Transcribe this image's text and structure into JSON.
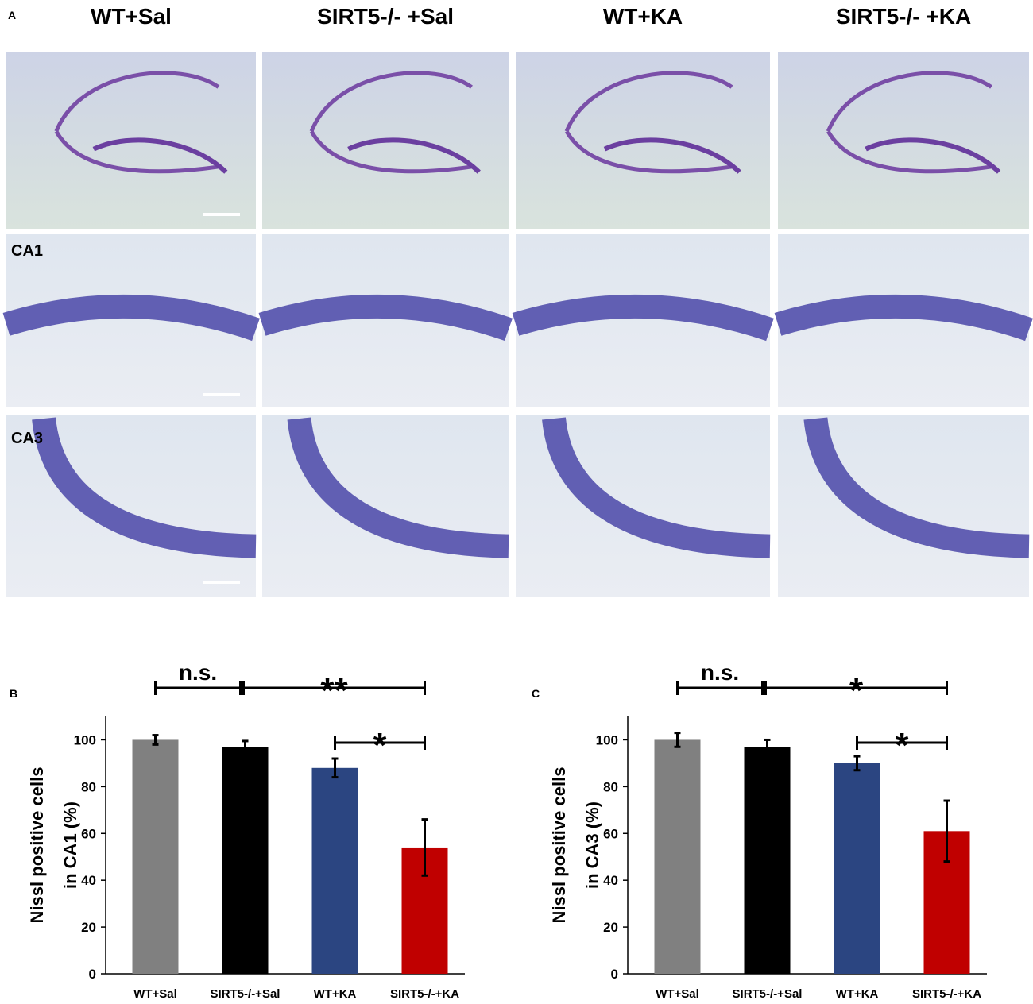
{
  "figure": {
    "panel_a": "A",
    "column_headers": [
      "WT+Sal",
      "SIRT5-/- +Sal",
      "WT+KA",
      "SIRT5-/- +KA"
    ],
    "row_labels": [
      "CA1",
      "CA3"
    ]
  },
  "chart_data": [
    {
      "type": "bar",
      "panel": "B",
      "ylabel": [
        "Nissl  positive cells",
        "in CA1 (%)"
      ],
      "categories": [
        "WT+Sal",
        "SIRT5-/-+Sal",
        "WT+KA",
        "SIRT5-/-+KA"
      ],
      "values": [
        100,
        97,
        88,
        54
      ],
      "errors": [
        2,
        2.5,
        4,
        12
      ],
      "colors": [
        "#808080",
        "#000000",
        "#2b4581",
        "#c00000"
      ],
      "ylim": [
        0,
        110
      ],
      "yticks": [
        0,
        20,
        40,
        60,
        80,
        100
      ],
      "annotations": [
        "n.s.",
        "**",
        "*"
      ]
    },
    {
      "type": "bar",
      "panel": "C",
      "ylabel": [
        "Nissl  positive cells",
        "in CA3 (%)"
      ],
      "categories": [
        "WT+Sal",
        "SIRT5-/-+Sal",
        "WT+KA",
        "SIRT5-/-+KA"
      ],
      "values": [
        100,
        97,
        90,
        61
      ],
      "errors": [
        3,
        3,
        3,
        13
      ],
      "colors": [
        "#808080",
        "#000000",
        "#2b4581",
        "#c00000"
      ],
      "ylim": [
        0,
        110
      ],
      "yticks": [
        0,
        20,
        40,
        60,
        80,
        100
      ],
      "annotations": [
        "n.s.",
        "*",
        "*"
      ]
    }
  ]
}
